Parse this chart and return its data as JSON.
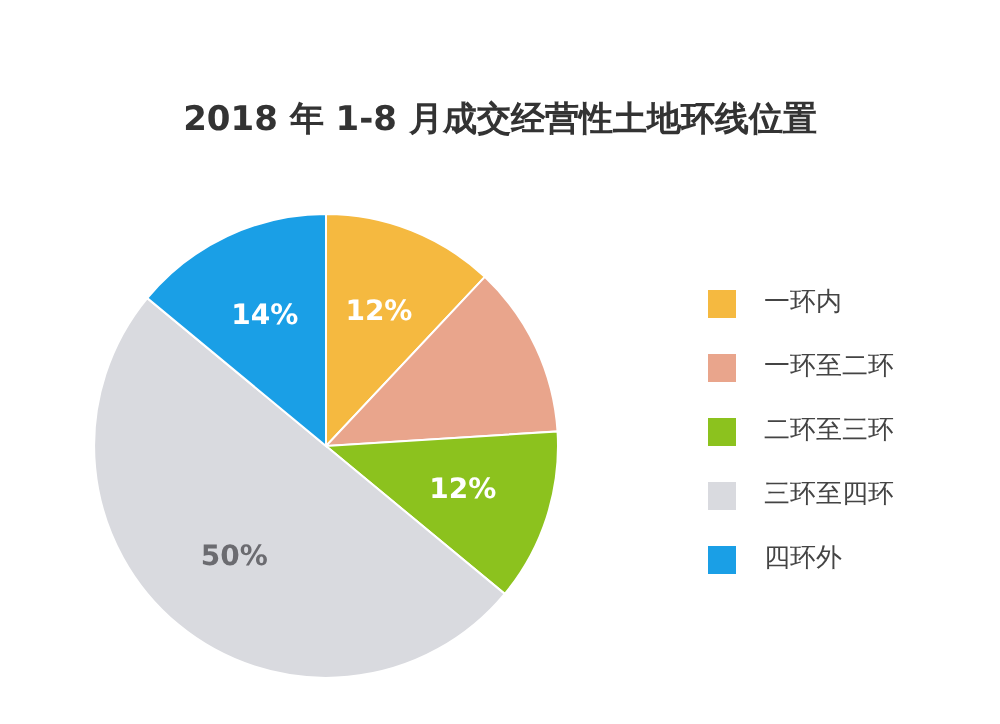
{
  "chart_data": {
    "type": "pie",
    "title": "2018 年 1-8 月成交经营性土地环线位置",
    "categories": [
      "一环内",
      "一环至二环",
      "二环至三环",
      "三环至四环",
      "四环外"
    ],
    "values": [
      12,
      12,
      12,
      50,
      14
    ],
    "colors": [
      "#f5b940",
      "#e9a58c",
      "#8cc21e",
      "#d9dadf",
      "#1a9fe6"
    ],
    "value_labels": [
      "12%",
      null,
      "12%",
      "50%",
      "14%"
    ],
    "legend": "right"
  }
}
